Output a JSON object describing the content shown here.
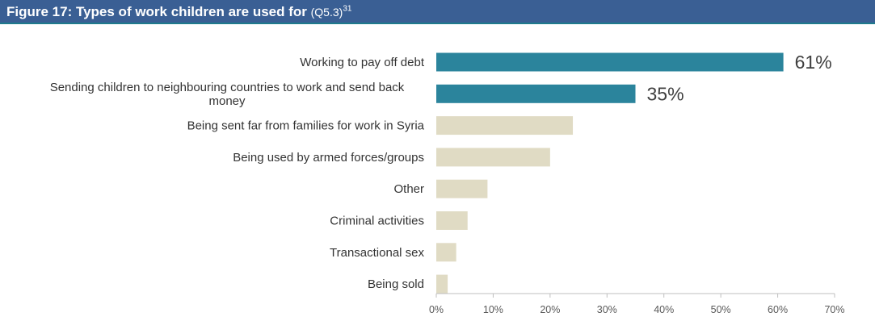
{
  "header": {
    "title": "Figure 17: Types of work children are used for",
    "ref": "(Q5.3)",
    "footnote": "31"
  },
  "colors": {
    "header_bg": "#3a5f94",
    "highlight_bar": "#2b849c",
    "other_bar": "#e0dbc4",
    "axis": "#bfbfbf"
  },
  "chart_data": {
    "type": "bar",
    "orientation": "horizontal",
    "title": "Figure 17: Types of work children are used for",
    "xlabel": "",
    "ylabel": "",
    "xlim": [
      0,
      70
    ],
    "x_ticks": [
      "0%",
      "10%",
      "20%",
      "30%",
      "40%",
      "50%",
      "60%",
      "70%"
    ],
    "grid": false,
    "categories": [
      [
        "Working to pay off debt"
      ],
      [
        "Sending children to neighbouring countries to work and send back",
        "money"
      ],
      [
        "Being sent far from families for work in Syria"
      ],
      [
        "Being used by armed forces/groups"
      ],
      [
        "Other"
      ],
      [
        "Criminal activities"
      ],
      [
        "Transactional sex"
      ],
      [
        "Being sold"
      ]
    ],
    "values": [
      61,
      35,
      24,
      20,
      9,
      5.5,
      3.5,
      2
    ],
    "highlighted": [
      true,
      true,
      false,
      false,
      false,
      false,
      false,
      false
    ],
    "data_labels": [
      "61%",
      "35%",
      "",
      "",
      "",
      "",
      "",
      ""
    ]
  }
}
